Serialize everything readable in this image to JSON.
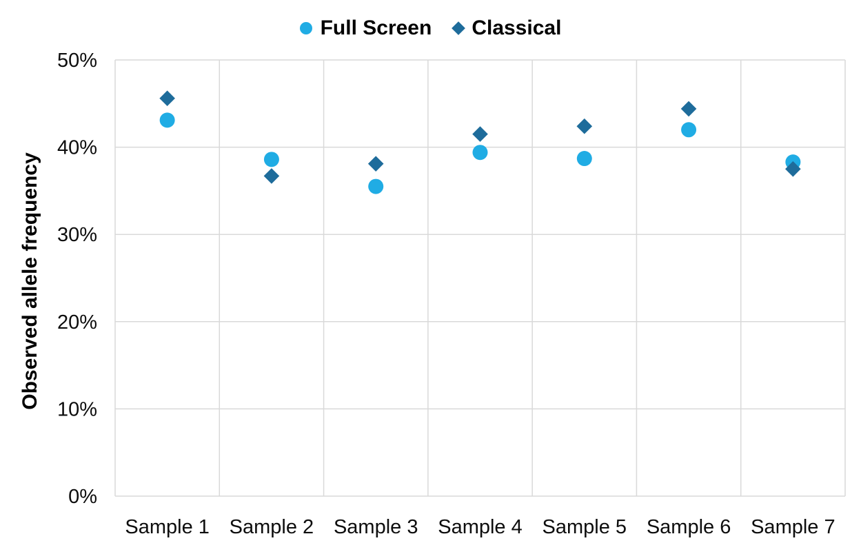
{
  "chart_data": {
    "type": "scatter",
    "title": "",
    "xlabel": "",
    "ylabel": "Observed allele frequency",
    "ylim": [
      0,
      50
    ],
    "yticks": [
      0,
      10,
      20,
      30,
      40,
      50
    ],
    "ytick_suffix": "%",
    "grid": true,
    "legend_position": "top-center",
    "categories": [
      "Sample 1",
      "Sample 2",
      "Sample 3",
      "Sample 4",
      "Sample 5",
      "Sample 6",
      "Sample 7"
    ],
    "series": [
      {
        "name": "Full Screen",
        "marker": "circle",
        "color": "#20ACE4",
        "values": [
          43.1,
          38.6,
          35.5,
          39.4,
          38.7,
          42.0,
          38.3
        ]
      },
      {
        "name": "Classical",
        "marker": "diamond",
        "color": "#1E6C9B",
        "values": [
          45.6,
          36.7,
          38.1,
          41.5,
          42.4,
          44.4,
          37.5
        ]
      }
    ],
    "colors": {
      "gridline": "#D9D9D9",
      "axis_text": "#0d0d0d",
      "background": "#FFFFFF"
    }
  }
}
